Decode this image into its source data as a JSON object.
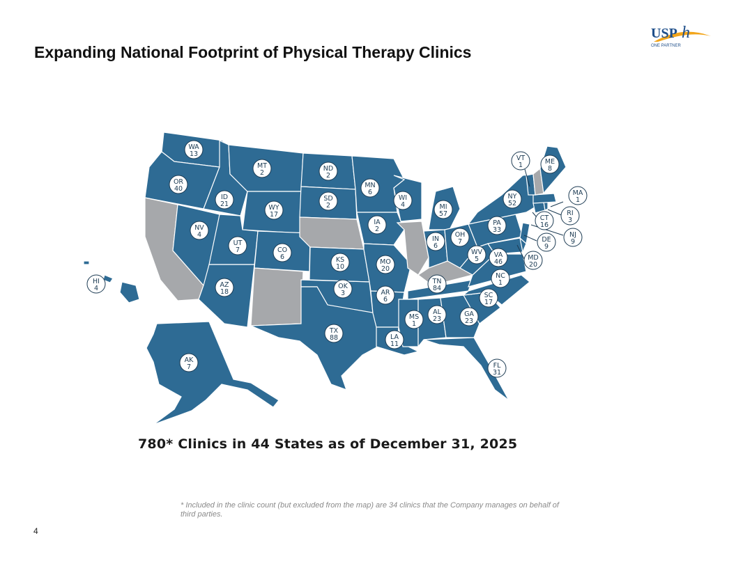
{
  "title": "Expanding National Footprint of Physical Therapy Clinics",
  "logo": {
    "brand": "USPh",
    "tagline": "ONE PARTNER",
    "accent": "#f2a51a",
    "brand_color": "#1f4f8a"
  },
  "caption": "780* Clinics in 44 States as of December 31, 2025",
  "footnote": "* Included in the clinic count (but excluded from the map) are 34 clinics that the Company manages on behalf of third parties.",
  "page_number": "4",
  "colors": {
    "covered": "#2e6b94",
    "not_covered": "#a6a8ab"
  },
  "states": [
    {
      "abbr": "WA",
      "count": "13"
    },
    {
      "abbr": "OR",
      "count": "40"
    },
    {
      "abbr": "ID",
      "count": "21"
    },
    {
      "abbr": "MT",
      "count": "2"
    },
    {
      "abbr": "ND",
      "count": "2"
    },
    {
      "abbr": "MN",
      "count": "6"
    },
    {
      "abbr": "WY",
      "count": "17"
    },
    {
      "abbr": "SD",
      "count": "2"
    },
    {
      "abbr": "NV",
      "count": "4"
    },
    {
      "abbr": "UT",
      "count": "7"
    },
    {
      "abbr": "CO",
      "count": "6"
    },
    {
      "abbr": "KS",
      "count": "10"
    },
    {
      "abbr": "IA",
      "count": "2"
    },
    {
      "abbr": "WI",
      "count": "4"
    },
    {
      "abbr": "MI",
      "count": "57"
    },
    {
      "abbr": "AZ",
      "count": "18"
    },
    {
      "abbr": "OK",
      "count": "3"
    },
    {
      "abbr": "MO",
      "count": "20"
    },
    {
      "abbr": "AR",
      "count": "6"
    },
    {
      "abbr": "TX",
      "count": "88"
    },
    {
      "abbr": "LA",
      "count": "11"
    },
    {
      "abbr": "MS",
      "count": "1"
    },
    {
      "abbr": "AL",
      "count": "23"
    },
    {
      "abbr": "TN",
      "count": "84"
    },
    {
      "abbr": "GA",
      "count": "23"
    },
    {
      "abbr": "FL",
      "count": "31"
    },
    {
      "abbr": "SC",
      "count": "17"
    },
    {
      "abbr": "NC",
      "count": "1"
    },
    {
      "abbr": "VA",
      "count": "46"
    },
    {
      "abbr": "WV",
      "count": "5"
    },
    {
      "abbr": "OH",
      "count": "7"
    },
    {
      "abbr": "IN",
      "count": "6"
    },
    {
      "abbr": "PA",
      "count": "33"
    },
    {
      "abbr": "NY",
      "count": "52"
    },
    {
      "abbr": "VT",
      "count": "1"
    },
    {
      "abbr": "ME",
      "count": "8"
    },
    {
      "abbr": "MA",
      "count": "1"
    },
    {
      "abbr": "RI",
      "count": "3"
    },
    {
      "abbr": "CT",
      "count": "16"
    },
    {
      "abbr": "NJ",
      "count": "9"
    },
    {
      "abbr": "DE",
      "count": "9"
    },
    {
      "abbr": "MD",
      "count": "20"
    },
    {
      "abbr": "AK",
      "count": "7"
    },
    {
      "abbr": "HI",
      "count": "4"
    }
  ],
  "not_covered_states": [
    "CA",
    "NM",
    "NE",
    "IL",
    "KY",
    "NH"
  ]
}
